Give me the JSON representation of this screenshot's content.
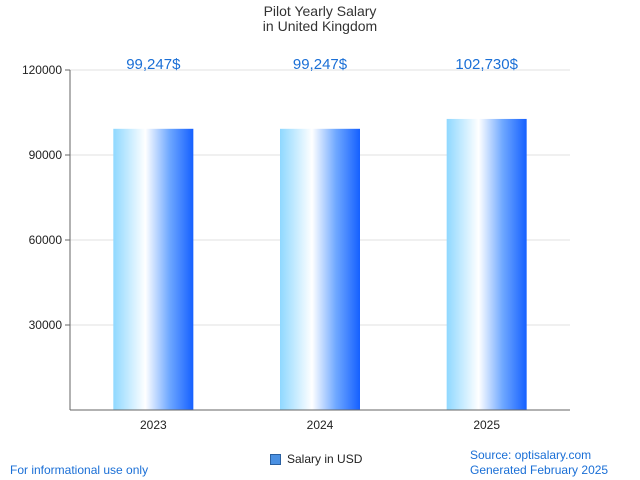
{
  "title_line1": "Pilot Yearly Salary",
  "title_line2": "in United Kingdom",
  "legend_label": "Salary in USD",
  "footer": {
    "note": "For informational use only",
    "source": "Source: optisalary.com",
    "generated": "Generated February 2025"
  },
  "colors": {
    "bar_light": "#e0f7ff",
    "bar_mid": "#7ecfff",
    "bar_dark": "#1e6cff",
    "label": "#1a6fd6"
  },
  "chart_data": {
    "type": "bar",
    "title": "Pilot Yearly Salary in United Kingdom",
    "categories": [
      "2023",
      "2024",
      "2025"
    ],
    "series": [
      {
        "name": "Salary in USD",
        "values": [
          99247,
          99247,
          102730
        ]
      }
    ],
    "data_labels": [
      "99,247$",
      "99,247$",
      "102,730$"
    ],
    "yticks": [
      "30000",
      "60000",
      "90000",
      "120000"
    ],
    "ylim": [
      0,
      120000
    ],
    "grid": true,
    "legend": "bottom"
  }
}
